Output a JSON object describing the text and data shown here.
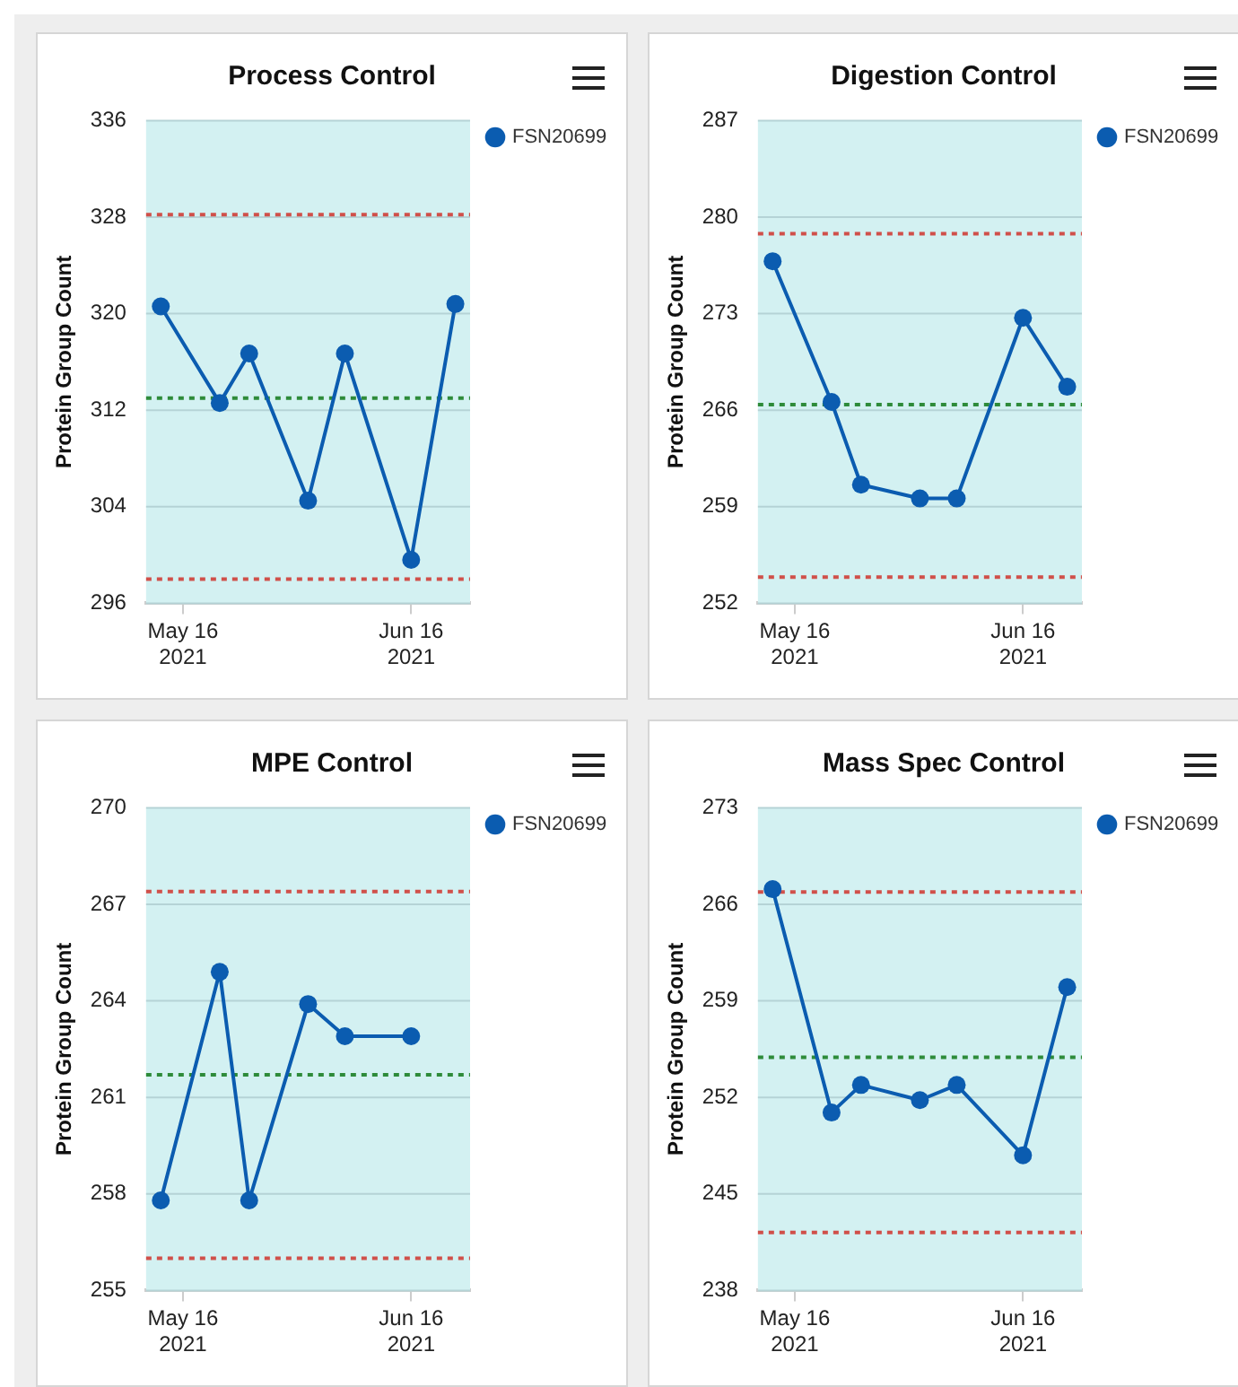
{
  "chart_data": [
    {
      "type": "line",
      "title": "Process Control",
      "ylabel": "Protein Group Count",
      "x": [
        "2021-05-13",
        "2021-05-21",
        "2021-05-25",
        "2021-06-02",
        "2021-06-07",
        "2021-06-16",
        "2021-06-22"
      ],
      "series": [
        {
          "name": "FSN20699",
          "color": "#0b5cb0",
          "values": [
            320.6,
            312.6,
            316.7,
            304.5,
            316.7,
            299.6,
            320.8
          ]
        }
      ],
      "xlim": [
        "2021-05-11",
        "2021-06-24"
      ],
      "xticks": [
        {
          "value": "2021-05-16",
          "label": "May 16 2021"
        },
        {
          "value": "2021-06-16",
          "label": "Jun 16 2021"
        }
      ],
      "ylim": [
        296,
        336
      ],
      "yticks": [
        296,
        304,
        312,
        320,
        328,
        336
      ],
      "ref_lines": [
        {
          "axis": "y",
          "value": 328.2,
          "color": "#d0504a",
          "line_style": "dotted"
        },
        {
          "axis": "y",
          "value": 313,
          "color": "#2e8b3a",
          "line_style": "dotted"
        },
        {
          "axis": "y",
          "value": 298,
          "color": "#d0504a",
          "line_style": "dotted"
        }
      ],
      "grid": "y",
      "legend": "top right",
      "marker": "circle"
    },
    {
      "type": "line",
      "title": "Digestion Control",
      "ylabel": "Protein Group Count",
      "x": [
        "2021-05-13",
        "2021-05-21",
        "2021-05-25",
        "2021-06-02",
        "2021-06-07",
        "2021-06-16",
        "2021-06-22"
      ],
      "series": [
        {
          "name": "FSN20699",
          "color": "#0b5cb0",
          "values": [
            276.8,
            266.6,
            260.6,
            259.6,
            259.6,
            272.7,
            267.7
          ]
        }
      ],
      "xlim": [
        "2021-05-11",
        "2021-06-24"
      ],
      "xticks": [
        {
          "value": "2021-05-16",
          "label": "May 16 2021"
        },
        {
          "value": "2021-06-16",
          "label": "Jun 16 2021"
        }
      ],
      "ylim": [
        252,
        287
      ],
      "yticks": [
        252,
        259,
        266,
        273,
        280,
        287
      ],
      "ref_lines": [
        {
          "axis": "y",
          "value": 278.8,
          "color": "#d0504a",
          "line_style": "dotted"
        },
        {
          "axis": "y",
          "value": 266.4,
          "color": "#2e8b3a",
          "line_style": "dotted"
        },
        {
          "axis": "y",
          "value": 253.9,
          "color": "#d0504a",
          "line_style": "dotted"
        }
      ],
      "grid": "y",
      "legend": "top right",
      "marker": "circle"
    },
    {
      "type": "line",
      "title": "MPE Control",
      "ylabel": "Protein Group Count",
      "x": [
        "2021-05-13",
        "2021-05-21",
        "2021-05-25",
        "2021-06-02",
        "2021-06-07",
        "2021-06-16"
      ],
      "series": [
        {
          "name": "FSN20699",
          "color": "#0b5cb0",
          "values": [
            257.8,
            264.9,
            257.8,
            263.9,
            262.9,
            262.9
          ]
        }
      ],
      "xlim": [
        "2021-05-11",
        "2021-06-24"
      ],
      "xticks": [
        {
          "value": "2021-05-16",
          "label": "May 16 2021"
        },
        {
          "value": "2021-06-16",
          "label": "Jun 16 2021"
        }
      ],
      "ylim": [
        255,
        270
      ],
      "yticks": [
        255,
        258,
        261,
        264,
        267,
        270
      ],
      "ref_lines": [
        {
          "axis": "y",
          "value": 267.4,
          "color": "#d0504a",
          "line_style": "dotted"
        },
        {
          "axis": "y",
          "value": 261.7,
          "color": "#2e8b3a",
          "line_style": "dotted"
        },
        {
          "axis": "y",
          "value": 256,
          "color": "#d0504a",
          "line_style": "dotted"
        }
      ],
      "grid": "y",
      "legend": "top right",
      "marker": "circle"
    },
    {
      "type": "line",
      "title": "Mass Spec Control",
      "ylabel": "Protein Group Count",
      "x": [
        "2021-05-13",
        "2021-05-21",
        "2021-05-25",
        "2021-06-02",
        "2021-06-07",
        "2021-06-16",
        "2021-06-22"
      ],
      "series": [
        {
          "name": "FSN20699",
          "color": "#0b5cb0",
          "values": [
            267.1,
            250.9,
            252.9,
            251.8,
            252.9,
            247.8,
            260
          ]
        }
      ],
      "xlim": [
        "2021-05-11",
        "2021-06-24"
      ],
      "xticks": [
        {
          "value": "2021-05-16",
          "label": "May 16 2021"
        },
        {
          "value": "2021-06-16",
          "label": "Jun 16 2021"
        }
      ],
      "ylim": [
        238,
        273
      ],
      "yticks": [
        238,
        245,
        252,
        259,
        266,
        273
      ],
      "ref_lines": [
        {
          "axis": "y",
          "value": 266.9,
          "color": "#d0504a",
          "line_style": "dotted"
        },
        {
          "axis": "y",
          "value": 254.9,
          "color": "#2e8b3a",
          "line_style": "dotted"
        },
        {
          "axis": "y",
          "value": 242.2,
          "color": "#d0504a",
          "line_style": "dotted"
        }
      ],
      "grid": "y",
      "legend": "top right",
      "marker": "circle"
    }
  ]
}
